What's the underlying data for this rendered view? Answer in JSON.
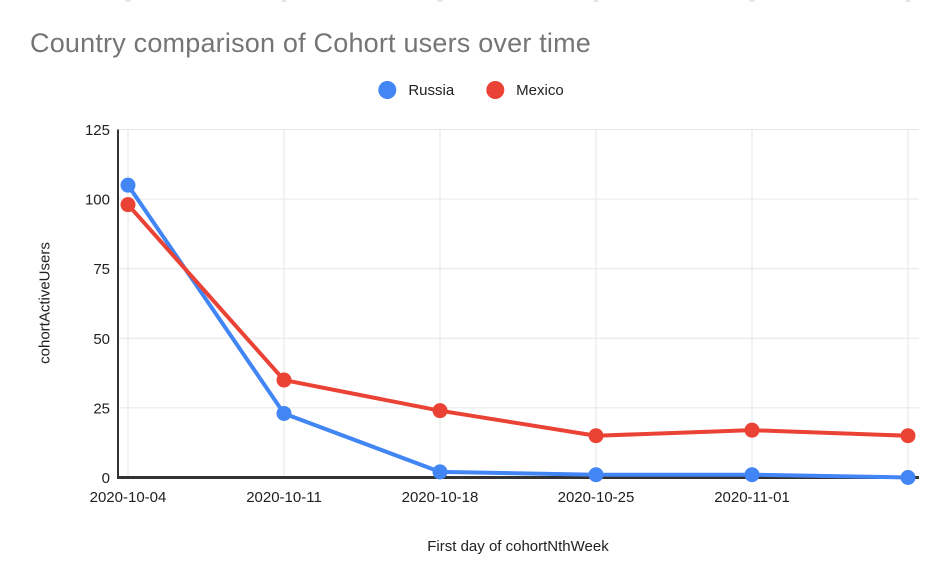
{
  "chart_data": {
    "type": "line",
    "title": "Country comparison of Cohort users over time",
    "x_tick_labels": [
      "2020-10-04",
      "2020-10-11",
      "2020-10-18",
      "2020-10-25",
      "2020-11-01",
      ""
    ],
    "series": [
      {
        "name": "Russia",
        "color": "#4285f4",
        "values": [
          105,
          23,
          2,
          1,
          1,
          0
        ]
      },
      {
        "name": "Mexico",
        "color": "#ea4335",
        "values": [
          98,
          35,
          24,
          15,
          17,
          15
        ]
      }
    ],
    "xlabel": "First day of cohortNthWeek",
    "ylabel": "cohortActiveUsers",
    "ylim": [
      0,
      125
    ],
    "y_ticks": [
      0,
      25,
      50,
      75,
      100,
      125
    ],
    "grid": true,
    "legend_position": "top"
  },
  "style": {
    "title_color": "#757575",
    "gridline_color": "#e6e6e6",
    "axis_line_color": "#333333",
    "tick_label_color": "#202124"
  }
}
